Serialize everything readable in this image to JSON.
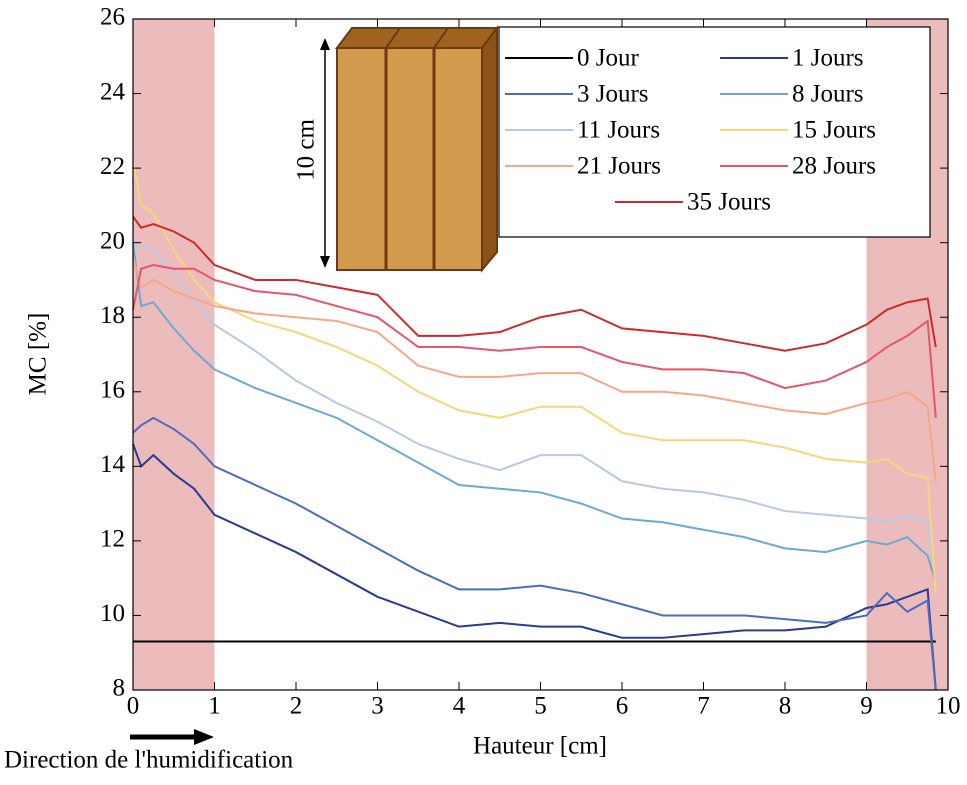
{
  "chart_data": {
    "type": "line",
    "ylabel": "MC [%]",
    "xlabel": "Hauteur [cm]",
    "annotation": "Direction de l'humidification",
    "inset_label": "10 cm",
    "x": [
      0,
      0.1,
      0.25,
      0.5,
      0.75,
      1,
      1.5,
      2,
      2.5,
      3,
      3.5,
      4,
      4.5,
      5,
      5.5,
      6,
      6.5,
      7,
      7.5,
      8,
      8.5,
      9,
      9.25,
      9.5,
      9.75,
      9.85
    ],
    "xlim": [
      0,
      10
    ],
    "xticks": [
      0,
      1,
      2,
      3,
      4,
      5,
      6,
      7,
      8,
      9,
      10
    ],
    "ylim": [
      8,
      26
    ],
    "yticks": [
      8,
      10,
      12,
      14,
      16,
      18,
      20,
      22,
      24,
      26
    ],
    "shaded_x": [
      [
        0,
        1
      ],
      [
        9,
        10
      ]
    ],
    "shade_color": "#ecbcbd",
    "grid": false,
    "legend": "upper right",
    "series": [
      {
        "name": "0 Jour",
        "color": "#000000",
        "values": [
          9.3,
          9.3,
          9.3,
          9.3,
          9.3,
          9.3,
          9.3,
          9.3,
          9.3,
          9.3,
          9.3,
          9.3,
          9.3,
          9.3,
          9.3,
          9.3,
          9.3,
          9.3,
          9.3,
          9.3,
          9.3,
          9.3,
          9.3,
          9.3,
          9.3,
          9.3
        ]
      },
      {
        "name": "1 Jours",
        "color": "#2b3a8f",
        "values": [
          14.6,
          14.0,
          14.3,
          13.8,
          13.4,
          12.7,
          12.2,
          11.7,
          11.1,
          10.5,
          10.1,
          9.7,
          9.8,
          9.7,
          9.7,
          9.4,
          9.4,
          9.5,
          9.6,
          9.6,
          9.7,
          10.2,
          10.3,
          10.5,
          10.7,
          8.0
        ]
      },
      {
        "name": "3 Jours",
        "color": "#4a6cc0",
        "values": [
          14.9,
          15.1,
          15.3,
          15.0,
          14.6,
          14.0,
          13.5,
          13.0,
          12.4,
          11.8,
          11.2,
          10.7,
          10.7,
          10.8,
          10.6,
          10.3,
          10.0,
          10.0,
          10.0,
          9.9,
          9.8,
          10.0,
          10.6,
          10.1,
          10.4,
          8.0
        ]
      },
      {
        "name": "8 Jours",
        "color": "#6fa8d0",
        "values": [
          20.0,
          18.3,
          18.4,
          17.7,
          17.1,
          16.6,
          16.1,
          15.7,
          15.3,
          14.7,
          14.1,
          13.5,
          13.4,
          13.3,
          13.0,
          12.6,
          12.5,
          12.3,
          12.1,
          11.8,
          11.7,
          12.0,
          11.9,
          12.1,
          11.6,
          10.9
        ]
      },
      {
        "name": "11 Jours",
        "color": "#b8c8e6",
        "values": [
          20.0,
          19.9,
          19.8,
          19.2,
          18.4,
          17.8,
          17.1,
          16.3,
          15.7,
          15.2,
          14.6,
          14.2,
          13.9,
          14.3,
          14.3,
          13.6,
          13.4,
          13.3,
          13.1,
          12.8,
          12.7,
          12.6,
          12.5,
          12.7,
          12.5,
          10.9
        ]
      },
      {
        "name": "15 Jours",
        "color": "#f6d67a",
        "values": [
          22.2,
          21.0,
          20.8,
          19.8,
          19.0,
          18.4,
          17.9,
          17.6,
          17.2,
          16.7,
          16.0,
          15.5,
          15.3,
          15.6,
          15.6,
          14.9,
          14.7,
          14.7,
          14.7,
          14.5,
          14.2,
          14.1,
          14.2,
          13.8,
          13.7,
          10.6
        ]
      },
      {
        "name": "21 Jours",
        "color": "#f6a78a",
        "values": [
          19.6,
          18.8,
          19.0,
          18.7,
          18.5,
          18.3,
          18.1,
          18.0,
          17.9,
          17.6,
          16.7,
          16.4,
          16.4,
          16.5,
          16.5,
          16.0,
          16.0,
          15.9,
          15.7,
          15.5,
          15.4,
          15.7,
          15.8,
          16.0,
          15.6,
          13.6
        ]
      },
      {
        "name": "28 Jours",
        "color": "#e8556b",
        "values": [
          18.2,
          19.3,
          19.4,
          19.3,
          19.3,
          19.0,
          18.7,
          18.6,
          18.3,
          18.0,
          17.2,
          17.2,
          17.1,
          17.2,
          17.2,
          16.8,
          16.6,
          16.6,
          16.5,
          16.1,
          16.3,
          16.8,
          17.2,
          17.5,
          17.9,
          15.3
        ]
      },
      {
        "name": "35 Jours",
        "color": "#cc2b2b",
        "values": [
          20.7,
          20.4,
          20.5,
          20.3,
          20.0,
          19.4,
          19.0,
          19.0,
          18.8,
          18.6,
          17.5,
          17.5,
          17.6,
          18.0,
          18.2,
          17.7,
          17.6,
          17.5,
          17.3,
          17.1,
          17.3,
          17.8,
          18.2,
          18.4,
          18.5,
          17.2
        ]
      }
    ]
  }
}
